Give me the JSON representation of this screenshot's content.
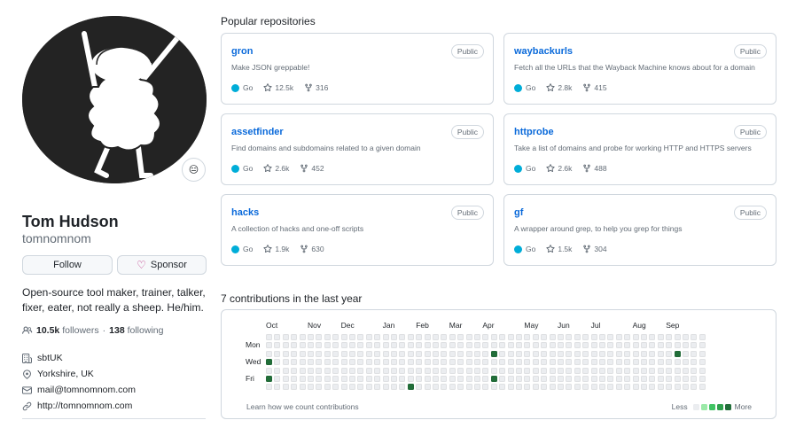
{
  "profile": {
    "name": "Tom Hudson",
    "login": "tomnomnom",
    "status_emoji": "😑",
    "follow_label": "Follow",
    "sponsor_label": "Sponsor",
    "bio": "Open-source tool maker, trainer, talker, fixer, eater, not really a sheep. He/him.",
    "followers_count": "10.5k",
    "followers_label": "followers",
    "separator": "·",
    "following_count": "138",
    "following_label": "following",
    "details": {
      "company": "sbtUK",
      "location": "Yorkshire, UK",
      "email": "mail@tomnomnom.com",
      "website": "http://tomnomnom.com"
    }
  },
  "popular": {
    "title": "Popular repositories",
    "repos": [
      {
        "name": "gron",
        "badge": "Public",
        "desc": "Make JSON greppable!",
        "lang": "Go",
        "stars": "12.5k",
        "forks": "316"
      },
      {
        "name": "waybackurls",
        "badge": "Public",
        "desc": "Fetch all the URLs that the Wayback Machine knows about for a domain",
        "lang": "Go",
        "stars": "2.8k",
        "forks": "415"
      },
      {
        "name": "assetfinder",
        "badge": "Public",
        "desc": "Find domains and subdomains related to a given domain",
        "lang": "Go",
        "stars": "2.6k",
        "forks": "452"
      },
      {
        "name": "httprobe",
        "badge": "Public",
        "desc": "Take a list of domains and probe for working HTTP and HTTPS servers",
        "lang": "Go",
        "stars": "2.6k",
        "forks": "488"
      },
      {
        "name": "hacks",
        "badge": "Public",
        "desc": "A collection of hacks and one-off scripts",
        "lang": "Go",
        "stars": "1.9k",
        "forks": "630"
      },
      {
        "name": "gf",
        "badge": "Public",
        "desc": "A wrapper around grep, to help you grep for things",
        "lang": "Go",
        "stars": "1.5k",
        "forks": "304"
      }
    ]
  },
  "contributions": {
    "title": "7 contributions in the last year",
    "months": [
      "Oct",
      "Nov",
      "Dec",
      "Jan",
      "Feb",
      "Mar",
      "Apr",
      "May",
      "Jun",
      "Jul",
      "Aug",
      "Sep"
    ],
    "days": [
      "Mon",
      "Wed",
      "Fri"
    ],
    "weeks": 53,
    "active_cells": [
      {
        "week": 0,
        "day": 3,
        "level": 2
      },
      {
        "week": 0,
        "day": 5,
        "level": 2
      },
      {
        "week": 17,
        "day": 6,
        "level": 2
      },
      {
        "week": 27,
        "day": 2,
        "level": 2
      },
      {
        "week": 27,
        "day": 5,
        "level": 2
      },
      {
        "week": 49,
        "day": 2,
        "level": 2
      }
    ],
    "learn_label": "Learn how we count contributions",
    "legend_less": "Less",
    "legend_more": "More",
    "colors": {
      "empty": "#ebedf0",
      "levels": [
        "#ebedf0",
        "#9be9a8",
        "#40c463",
        "#30a14e",
        "#216e39"
      ]
    }
  },
  "colors": {
    "link": "#0969da",
    "go_language": "#00ADD8",
    "sponsor_heart": "#bf3989"
  }
}
